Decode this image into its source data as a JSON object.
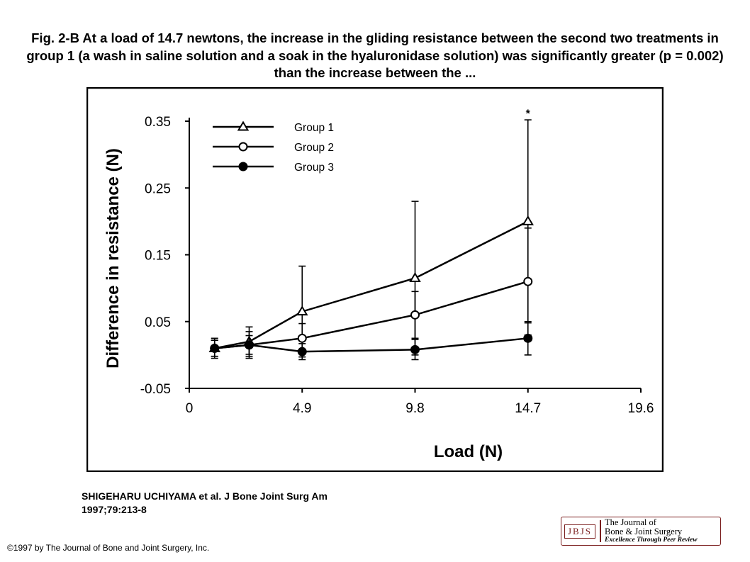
{
  "caption": "Fig. 2-B At a load of 14.7 newtons, the increase in the gliding resistance between the second two treatments in group 1 (a wash in saline solution and a soak in the hyaluronidase solution) was significantly greater (p = 0.002) than the increase between the ...",
  "citation": {
    "line1": "SHIGEHARU UCHIYAMA et al. J Bone Joint Surg Am",
    "line2": "1997;79:213-8"
  },
  "copyright": "©1997 by The Journal of Bone and Joint Surgery, Inc.",
  "logo": {
    "mark": "JBJS",
    "line1": "The Journal of",
    "line2": "Bone & Joint Surgery",
    "tagline": "Excellence Through Peer Review",
    "color": "#7a1d1d"
  },
  "chart_data": {
    "type": "line",
    "title": "",
    "xlabel": "Load (N)",
    "ylabel": "Difference in resistance (N)",
    "xlim": [
      0,
      19.6
    ],
    "ylim": [
      -0.05,
      0.35
    ],
    "xticks": [
      {
        "value": 0,
        "label": "0"
      },
      {
        "value": 4.9,
        "label": "4.9"
      },
      {
        "value": 9.8,
        "label": "9.8"
      },
      {
        "value": 14.7,
        "label": "14.7"
      },
      {
        "value": 19.6,
        "label": "19.6"
      }
    ],
    "yticks": [
      {
        "value": -0.05,
        "label": "-0.05"
      },
      {
        "value": 0.05,
        "label": "0.05"
      },
      {
        "value": 0.15,
        "label": "0.15"
      },
      {
        "value": 0.25,
        "label": "0.25"
      },
      {
        "value": 0.35,
        "label": "0.35"
      }
    ],
    "grid": false,
    "legend_position": "top-left",
    "annotation": {
      "text": "*",
      "x": 14.7,
      "y": 0.36
    },
    "series": [
      {
        "name": "Group 1",
        "marker": "triangle-open",
        "x": [
          1.1,
          2.6,
          4.9,
          9.8,
          14.7
        ],
        "y": [
          0.01,
          0.02,
          0.065,
          0.115,
          0.2
        ],
        "err": [
          0.015,
          0.022,
          0.068,
          0.115,
          0.152
        ]
      },
      {
        "name": "Group 2",
        "marker": "circle-open",
        "x": [
          1.1,
          2.6,
          4.9,
          9.8,
          14.7
        ],
        "y": [
          0.01,
          0.015,
          0.025,
          0.06,
          0.11
        ],
        "err": [
          0.012,
          0.02,
          0.022,
          0.035,
          0.08
        ]
      },
      {
        "name": "Group 3",
        "marker": "circle-filled",
        "x": [
          1.1,
          2.6,
          4.9,
          9.8,
          14.7
        ],
        "y": [
          0.01,
          0.015,
          0.005,
          0.008,
          0.025
        ],
        "err": [
          0.012,
          0.014,
          0.012,
          0.015,
          0.025
        ]
      }
    ]
  }
}
